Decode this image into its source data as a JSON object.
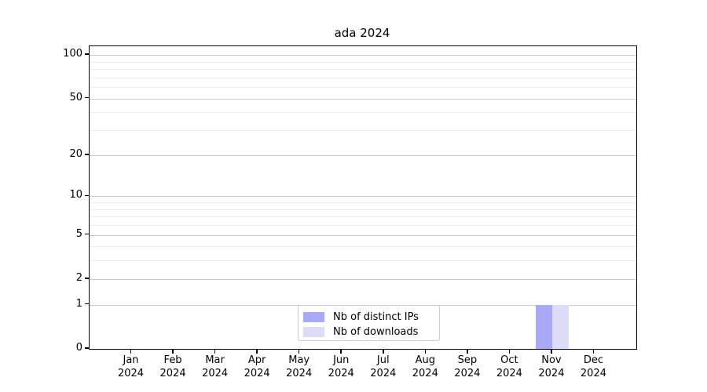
{
  "chart_data": {
    "type": "bar",
    "title": "ada 2024",
    "xlabel": "",
    "ylabel": "",
    "months": [
      "Jan",
      "Feb",
      "Mar",
      "Apr",
      "May",
      "Jun",
      "Jul",
      "Aug",
      "Sep",
      "Oct",
      "Nov",
      "Dec"
    ],
    "year": "2024",
    "categories": [
      "Jan 2024",
      "Feb 2024",
      "Mar 2024",
      "Apr 2024",
      "May 2024",
      "Jun 2024",
      "Jul 2024",
      "Aug 2024",
      "Sep 2024",
      "Oct 2024",
      "Nov 2024",
      "Dec 2024"
    ],
    "series": [
      {
        "name": "Nb of distinct IPs",
        "color": "#a9a9f7",
        "values": [
          0,
          0,
          0,
          0,
          0,
          0,
          0,
          0,
          0,
          0,
          1,
          0
        ]
      },
      {
        "name": "Nb of downloads",
        "color": "#dcdcf8",
        "values": [
          0,
          0,
          0,
          0,
          0,
          0,
          0,
          0,
          0,
          0,
          1,
          0
        ]
      }
    ],
    "yscale": "log1p",
    "ylim": [
      0,
      115
    ],
    "yticks_major": [
      0,
      1,
      2,
      5,
      10,
      20,
      50,
      100
    ],
    "yticks_minor": [
      3,
      4,
      6,
      7,
      8,
      9,
      30,
      40,
      60,
      70,
      80,
      90
    ],
    "grid": true,
    "legend_position": "lower center"
  },
  "colors": {
    "background": "#ffffff",
    "axis": "#000000",
    "grid_major": "#cbcbcb",
    "grid_minor": "#ededed",
    "legend_border": "#cccccc"
  }
}
